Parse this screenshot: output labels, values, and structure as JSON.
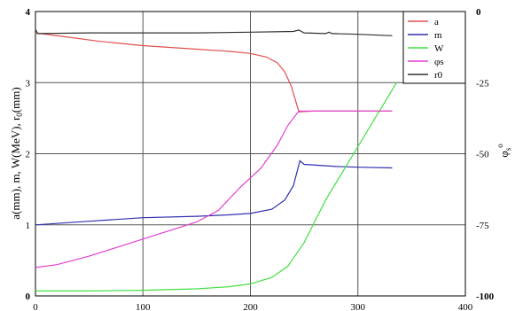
{
  "chart_data": {
    "type": "line",
    "title": "",
    "xlabel": "",
    "ylabel": "a(mm), m, W(MeV), r0(mm)",
    "ylabel_right": "φs°",
    "xlim": [
      0,
      400
    ],
    "ylim": [
      0,
      4
    ],
    "ylim_right": [
      -100,
      0
    ],
    "x_ticks": [
      "0",
      "100",
      "200",
      "300",
      "400"
    ],
    "y_ticks_left": [
      "0",
      "1",
      "2",
      "3",
      "4"
    ],
    "y_ticks_right": [
      "0",
      "-25",
      "-50",
      "-75",
      "-100"
    ],
    "grid": true,
    "legend_position": "top-right",
    "series": [
      {
        "name": "a",
        "color": "#e05050",
        "axis": "left",
        "points": [
          [
            0,
            3.7
          ],
          [
            30,
            3.64
          ],
          [
            60,
            3.58
          ],
          [
            100,
            3.52
          ],
          [
            150,
            3.47
          ],
          [
            180,
            3.44
          ],
          [
            200,
            3.41
          ],
          [
            215,
            3.36
          ],
          [
            225,
            3.28
          ],
          [
            232,
            3.15
          ],
          [
            238,
            2.95
          ],
          [
            242,
            2.75
          ],
          [
            245,
            2.59
          ],
          [
            260,
            2.6
          ],
          [
            300,
            2.6
          ],
          [
            332,
            2.6
          ]
        ]
      },
      {
        "name": "m",
        "color": "#3030b0",
        "axis": "left",
        "points": [
          [
            0,
            1.0
          ],
          [
            50,
            1.05
          ],
          [
            100,
            1.1
          ],
          [
            150,
            1.12
          ],
          [
            180,
            1.14
          ],
          [
            200,
            1.16
          ],
          [
            220,
            1.22
          ],
          [
            232,
            1.35
          ],
          [
            240,
            1.55
          ],
          [
            244,
            1.78
          ],
          [
            246,
            1.9
          ],
          [
            250,
            1.85
          ],
          [
            280,
            1.82
          ],
          [
            300,
            1.81
          ],
          [
            332,
            1.8
          ]
        ]
      },
      {
        "name": "W",
        "color": "#40e040",
        "axis": "left",
        "points": [
          [
            0,
            0.07
          ],
          [
            50,
            0.07
          ],
          [
            100,
            0.08
          ],
          [
            150,
            0.1
          ],
          [
            180,
            0.13
          ],
          [
            200,
            0.17
          ],
          [
            220,
            0.26
          ],
          [
            235,
            0.42
          ],
          [
            250,
            0.75
          ],
          [
            270,
            1.35
          ],
          [
            300,
            2.1
          ],
          [
            320,
            2.6
          ],
          [
            336,
            3.0
          ]
        ]
      },
      {
        "name": "φs",
        "color": "#e040d0",
        "axis": "right",
        "points": [
          [
            0,
            -90
          ],
          [
            20,
            -89
          ],
          [
            50,
            -86
          ],
          [
            100,
            -80
          ],
          [
            150,
            -74
          ],
          [
            170,
            -70
          ],
          [
            190,
            -62
          ],
          [
            210,
            -55
          ],
          [
            225,
            -47
          ],
          [
            235,
            -40
          ],
          [
            245,
            -35
          ],
          [
            260,
            -35
          ],
          [
            300,
            -35
          ],
          [
            332,
            -35
          ]
        ]
      },
      {
        "name": "r0",
        "color": "#303030",
        "axis": "left",
        "points": [
          [
            0,
            3.75
          ],
          [
            2,
            3.69
          ],
          [
            50,
            3.7
          ],
          [
            100,
            3.7
          ],
          [
            150,
            3.7
          ],
          [
            200,
            3.71
          ],
          [
            240,
            3.72
          ],
          [
            245,
            3.74
          ],
          [
            250,
            3.7
          ],
          [
            270,
            3.69
          ],
          [
            273,
            3.71
          ],
          [
            276,
            3.69
          ],
          [
            300,
            3.68
          ],
          [
            332,
            3.66
          ]
        ]
      }
    ]
  }
}
